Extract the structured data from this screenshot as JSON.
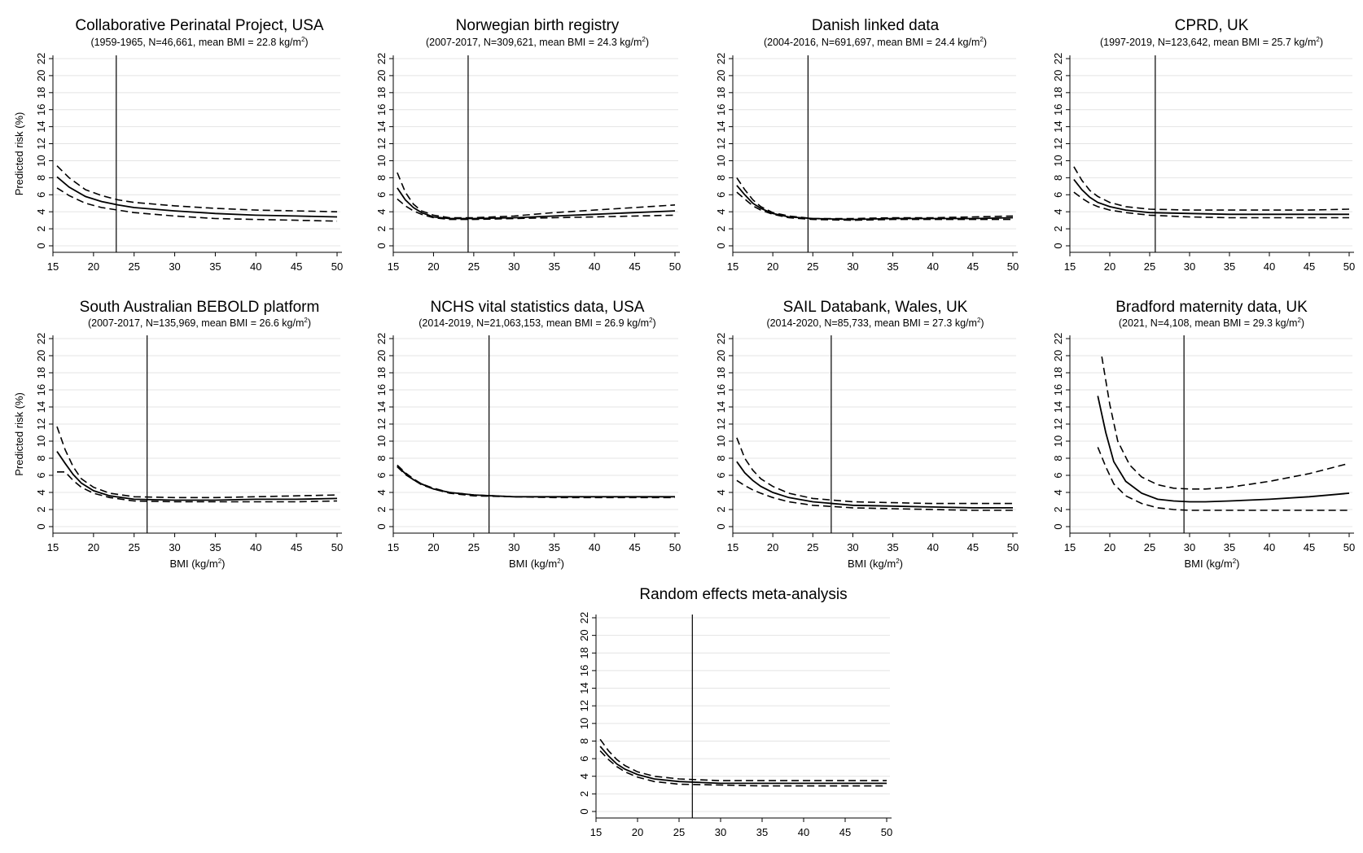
{
  "figure": {
    "axis_unit_sup": "2"
  },
  "chart_data": [
    {
      "type": "line",
      "title": "Collaborative Perinatal Project, USA",
      "subtitle": "(1959-1965, N=46,661, mean BMI = 22.8 kg/m",
      "ylabel": "Predicted risk (%)",
      "xlabel": "",
      "xlim": [
        15,
        50
      ],
      "ylim": [
        0,
        22
      ],
      "xticks": [
        15,
        20,
        25,
        30,
        35,
        40,
        45,
        50
      ],
      "yticks": [
        0,
        2,
        4,
        6,
        8,
        10,
        12,
        14,
        16,
        18,
        20,
        22
      ],
      "grid": true,
      "reference_x": 22.8,
      "series": [
        {
          "style": "solid",
          "x": [
            15.5,
            17,
            19,
            21,
            23,
            25,
            30,
            35,
            40,
            45,
            50
          ],
          "y": [
            8.1,
            6.9,
            5.8,
            5.2,
            4.8,
            4.5,
            4.1,
            3.8,
            3.6,
            3.5,
            3.4
          ]
        },
        {
          "style": "dashed",
          "x": [
            15.5,
            17,
            19,
            21,
            23,
            25,
            30,
            35,
            40,
            45,
            50
          ],
          "y": [
            9.4,
            8.0,
            6.6,
            5.9,
            5.4,
            5.1,
            4.7,
            4.4,
            4.2,
            4.1,
            4.0
          ]
        },
        {
          "style": "dashed",
          "x": [
            15.5,
            17,
            19,
            21,
            23,
            25,
            30,
            35,
            40,
            45,
            50
          ],
          "y": [
            6.8,
            5.9,
            5.0,
            4.5,
            4.2,
            3.9,
            3.5,
            3.2,
            3.1,
            3.0,
            2.9
          ]
        }
      ]
    },
    {
      "type": "line",
      "title": "Norwegian birth registry",
      "subtitle": "(2007-2017, N=309,621, mean BMI = 24.3 kg/m",
      "ylabel": "",
      "xlabel": "",
      "xlim": [
        15,
        50
      ],
      "ylim": [
        0,
        22
      ],
      "xticks": [
        15,
        20,
        25,
        30,
        35,
        40,
        45,
        50
      ],
      "yticks": [
        0,
        2,
        4,
        6,
        8,
        10,
        12,
        14,
        16,
        18,
        20,
        22
      ],
      "grid": true,
      "reference_x": 24.3,
      "series": [
        {
          "style": "solid",
          "x": [
            15.5,
            16.5,
            17.5,
            18.5,
            20,
            22,
            25,
            30,
            35,
            40,
            45,
            50
          ],
          "y": [
            6.8,
            5.4,
            4.5,
            3.9,
            3.4,
            3.2,
            3.2,
            3.3,
            3.5,
            3.7,
            3.9,
            4.1
          ]
        },
        {
          "style": "dashed",
          "x": [
            15.5,
            16.5,
            17.5,
            18.5,
            20,
            22,
            25,
            30,
            35,
            40,
            45,
            50
          ],
          "y": [
            8.6,
            6.3,
            4.9,
            4.1,
            3.6,
            3.3,
            3.3,
            3.5,
            3.9,
            4.2,
            4.5,
            4.8
          ]
        },
        {
          "style": "dashed",
          "x": [
            15.5,
            16.5,
            17.5,
            18.5,
            20,
            22,
            25,
            30,
            35,
            40,
            45,
            50
          ],
          "y": [
            5.5,
            4.7,
            4.1,
            3.7,
            3.3,
            3.1,
            3.1,
            3.2,
            3.3,
            3.4,
            3.5,
            3.6
          ]
        }
      ]
    },
    {
      "type": "line",
      "title": "Danish linked data",
      "subtitle": "(2004-2016, N=691,697, mean BMI = 24.4 kg/m",
      "ylabel": "",
      "xlabel": "",
      "xlim": [
        15,
        50
      ],
      "ylim": [
        0,
        22
      ],
      "xticks": [
        15,
        20,
        25,
        30,
        35,
        40,
        45,
        50
      ],
      "yticks": [
        0,
        2,
        4,
        6,
        8,
        10,
        12,
        14,
        16,
        18,
        20,
        22
      ],
      "grid": true,
      "reference_x": 24.4,
      "series": [
        {
          "style": "solid",
          "x": [
            15.5,
            16.5,
            17.5,
            18.5,
            20,
            22,
            25,
            30,
            35,
            40,
            45,
            50
          ],
          "y": [
            7.1,
            6.0,
            5.0,
            4.4,
            3.8,
            3.4,
            3.2,
            3.1,
            3.2,
            3.2,
            3.2,
            3.3
          ]
        },
        {
          "style": "dashed",
          "x": [
            15.5,
            16.5,
            17.5,
            18.5,
            20,
            22,
            25,
            30,
            35,
            40,
            45,
            50
          ],
          "y": [
            8.0,
            6.6,
            5.4,
            4.6,
            3.9,
            3.5,
            3.2,
            3.2,
            3.3,
            3.3,
            3.4,
            3.5
          ]
        },
        {
          "style": "dashed",
          "x": [
            15.5,
            16.5,
            17.5,
            18.5,
            20,
            22,
            25,
            30,
            35,
            40,
            45,
            50
          ],
          "y": [
            6.3,
            5.5,
            4.7,
            4.2,
            3.7,
            3.3,
            3.1,
            3.0,
            3.1,
            3.1,
            3.1,
            3.1
          ]
        }
      ]
    },
    {
      "type": "line",
      "title": "CPRD, UK",
      "subtitle": "(1997-2019, N=123,642, mean BMI = 25.7 kg/m",
      "ylabel": "",
      "xlabel": "",
      "xlim": [
        15,
        50
      ],
      "ylim": [
        0,
        22
      ],
      "xticks": [
        15,
        20,
        25,
        30,
        35,
        40,
        45,
        50
      ],
      "yticks": [
        0,
        2,
        4,
        6,
        8,
        10,
        12,
        14,
        16,
        18,
        20,
        22
      ],
      "grid": true,
      "reference_x": 25.7,
      "series": [
        {
          "style": "solid",
          "x": [
            15.5,
            16.5,
            17.5,
            18.5,
            20,
            22,
            25,
            30,
            35,
            40,
            45,
            50
          ],
          "y": [
            7.8,
            6.6,
            5.7,
            5.1,
            4.6,
            4.2,
            3.9,
            3.8,
            3.7,
            3.7,
            3.7,
            3.7
          ]
        },
        {
          "style": "dashed",
          "x": [
            15.5,
            16.5,
            17.5,
            18.5,
            20,
            22,
            25,
            30,
            35,
            40,
            45,
            50
          ],
          "y": [
            9.3,
            7.7,
            6.5,
            5.8,
            5.1,
            4.6,
            4.3,
            4.2,
            4.2,
            4.2,
            4.2,
            4.3
          ]
        },
        {
          "style": "dashed",
          "x": [
            15.5,
            16.5,
            17.5,
            18.5,
            20,
            22,
            25,
            30,
            35,
            40,
            45,
            50
          ],
          "y": [
            6.3,
            5.6,
            5.0,
            4.6,
            4.2,
            3.9,
            3.6,
            3.4,
            3.3,
            3.3,
            3.3,
            3.3
          ]
        }
      ]
    },
    {
      "type": "line",
      "title": "South Australian BEBOLD platform",
      "subtitle": "(2007-2017, N=135,969, mean BMI = 26.6 kg/m",
      "ylabel": "Predicted risk (%)",
      "xlabel": "BMI (kg/m",
      "xlim": [
        15,
        50
      ],
      "ylim": [
        0,
        22
      ],
      "xticks": [
        15,
        20,
        25,
        30,
        35,
        40,
        45,
        50
      ],
      "yticks": [
        0,
        2,
        4,
        6,
        8,
        10,
        12,
        14,
        16,
        18,
        20,
        22
      ],
      "grid": true,
      "reference_x": 26.6,
      "series": [
        {
          "style": "solid",
          "x": [
            15.5,
            16.5,
            17.5,
            18.5,
            20,
            22,
            25,
            30,
            35,
            40,
            45,
            50
          ],
          "y": [
            8.8,
            7.4,
            6.1,
            5.1,
            4.2,
            3.6,
            3.2,
            3.1,
            3.1,
            3.2,
            3.2,
            3.3
          ]
        },
        {
          "style": "dashed",
          "x": [
            15.5,
            16.5,
            17.5,
            18.5,
            20,
            22,
            25,
            30,
            35,
            40,
            45,
            50
          ],
          "y": [
            11.7,
            9.0,
            7.0,
            5.6,
            4.6,
            3.9,
            3.5,
            3.4,
            3.4,
            3.5,
            3.6,
            3.7
          ]
        },
        {
          "style": "dashed",
          "x": [
            15.5,
            16.5,
            17.5,
            18.5,
            20,
            22,
            25,
            30,
            35,
            40,
            45,
            50
          ],
          "y": [
            6.4,
            6.4,
            5.4,
            4.6,
            3.9,
            3.4,
            3.0,
            2.9,
            2.9,
            2.9,
            2.9,
            3.0
          ]
        }
      ]
    },
    {
      "type": "line",
      "title": "NCHS vital statistics data, USA",
      "subtitle": "(2014-2019, N=21,063,153, mean BMI = 26.9 kg/m",
      "ylabel": "",
      "xlabel": "BMI (kg/m",
      "xlim": [
        15,
        50
      ],
      "ylim": [
        0,
        22
      ],
      "xticks": [
        15,
        20,
        25,
        30,
        35,
        40,
        45,
        50
      ],
      "yticks": [
        0,
        2,
        4,
        6,
        8,
        10,
        12,
        14,
        16,
        18,
        20,
        22
      ],
      "grid": true,
      "reference_x": 26.9,
      "series": [
        {
          "style": "solid",
          "x": [
            15.5,
            16.5,
            17.5,
            18.5,
            20,
            22,
            25,
            30,
            35,
            40,
            45,
            50
          ],
          "y": [
            7.1,
            6.2,
            5.5,
            5.0,
            4.4,
            4.0,
            3.7,
            3.5,
            3.5,
            3.5,
            3.5,
            3.5
          ]
        },
        {
          "style": "dashed",
          "x": [
            15.5,
            16.5,
            17.5,
            18.5,
            20,
            22,
            25,
            30,
            35,
            40,
            45,
            50
          ],
          "y": [
            7.2,
            6.3,
            5.6,
            5.0,
            4.5,
            4.0,
            3.7,
            3.5,
            3.5,
            3.5,
            3.5,
            3.5
          ]
        },
        {
          "style": "dashed",
          "x": [
            15.5,
            16.5,
            17.5,
            18.5,
            20,
            22,
            25,
            30,
            35,
            40,
            45,
            50
          ],
          "y": [
            7.0,
            6.1,
            5.5,
            4.9,
            4.4,
            3.9,
            3.6,
            3.5,
            3.4,
            3.4,
            3.4,
            3.4
          ]
        }
      ]
    },
    {
      "type": "line",
      "title": "SAIL Databank, Wales, UK",
      "subtitle": "(2014-2020, N=85,733, mean BMI = 27.3 kg/m",
      "ylabel": "",
      "xlabel": "BMI (kg/m",
      "xlim": [
        15,
        50
      ],
      "ylim": [
        0,
        22
      ],
      "xticks": [
        15,
        20,
        25,
        30,
        35,
        40,
        45,
        50
      ],
      "yticks": [
        0,
        2,
        4,
        6,
        8,
        10,
        12,
        14,
        16,
        18,
        20,
        22
      ],
      "grid": true,
      "reference_x": 27.3,
      "series": [
        {
          "style": "solid",
          "x": [
            15.5,
            16.5,
            17.5,
            18.5,
            20,
            22,
            25,
            30,
            35,
            40,
            45,
            50
          ],
          "y": [
            7.6,
            6.3,
            5.4,
            4.7,
            4.0,
            3.4,
            2.9,
            2.5,
            2.4,
            2.3,
            2.2,
            2.2
          ]
        },
        {
          "style": "dashed",
          "x": [
            15.5,
            16.5,
            17.5,
            18.5,
            20,
            22,
            25,
            30,
            35,
            40,
            45,
            50
          ],
          "y": [
            10.4,
            8.0,
            6.6,
            5.6,
            4.7,
            3.9,
            3.3,
            2.9,
            2.8,
            2.7,
            2.7,
            2.7
          ]
        },
        {
          "style": "dashed",
          "x": [
            15.5,
            16.5,
            17.5,
            18.5,
            20,
            22,
            25,
            30,
            35,
            40,
            45,
            50
          ],
          "y": [
            5.4,
            4.8,
            4.3,
            3.9,
            3.4,
            2.9,
            2.5,
            2.2,
            2.1,
            2.0,
            1.9,
            1.9
          ]
        }
      ]
    },
    {
      "type": "line",
      "title": "Bradford maternity data, UK",
      "subtitle": "(2021, N=4,108, mean BMI = 29.3 kg/m",
      "ylabel": "",
      "xlabel": "BMI (kg/m",
      "xlim": [
        15,
        50
      ],
      "ylim": [
        0,
        22
      ],
      "xticks": [
        15,
        20,
        25,
        30,
        35,
        40,
        45,
        50
      ],
      "yticks": [
        0,
        2,
        4,
        6,
        8,
        10,
        12,
        14,
        16,
        18,
        20,
        22
      ],
      "grid": true,
      "reference_x": 29.3,
      "series": [
        {
          "style": "solid",
          "x": [
            18.5,
            19.5,
            20.5,
            22,
            24,
            26,
            28,
            30,
            32,
            35,
            40,
            45,
            50
          ],
          "y": [
            15.3,
            11.0,
            7.6,
            5.3,
            3.9,
            3.2,
            3.0,
            2.9,
            2.9,
            3.0,
            3.2,
            3.5,
            3.9
          ]
        },
        {
          "style": "dashed",
          "x": [
            19,
            20,
            21,
            22.5,
            24,
            26,
            28,
            30,
            32,
            35,
            40,
            45,
            50
          ],
          "y": [
            19.9,
            14.3,
            10.0,
            7.2,
            5.8,
            4.9,
            4.5,
            4.4,
            4.4,
            4.6,
            5.3,
            6.2,
            7.4
          ]
        },
        {
          "style": "dashed",
          "x": [
            18.5,
            19.5,
            20.5,
            22,
            24,
            26,
            28,
            30,
            32,
            35,
            40,
            45,
            50
          ],
          "y": [
            9.3,
            7.0,
            5.0,
            3.6,
            2.7,
            2.2,
            2.0,
            1.9,
            1.9,
            1.9,
            1.9,
            1.9,
            1.9
          ]
        }
      ]
    },
    {
      "type": "line",
      "title": "Random effects meta-analysis",
      "subtitle": "",
      "ylabel": "",
      "xlabel": "",
      "xlim": [
        15,
        50
      ],
      "ylim": [
        0,
        22
      ],
      "xticks": [
        15,
        20,
        25,
        30,
        35,
        40,
        45,
        50
      ],
      "yticks": [
        0,
        2,
        4,
        6,
        8,
        10,
        12,
        14,
        16,
        18,
        20,
        22
      ],
      "grid": true,
      "reference_x": 26.6,
      "series": [
        {
          "style": "solid",
          "x": [
            15.5,
            16.5,
            17.5,
            18.5,
            20,
            22,
            25,
            30,
            35,
            40,
            45,
            50
          ],
          "y": [
            7.4,
            6.3,
            5.4,
            4.8,
            4.2,
            3.7,
            3.4,
            3.2,
            3.2,
            3.2,
            3.2,
            3.2
          ]
        },
        {
          "style": "dashed",
          "x": [
            15.5,
            16.5,
            17.5,
            18.5,
            20,
            22,
            25,
            30,
            35,
            40,
            45,
            50
          ],
          "y": [
            8.2,
            6.9,
            5.9,
            5.2,
            4.5,
            4.0,
            3.7,
            3.5,
            3.5,
            3.5,
            3.5,
            3.5
          ]
        },
        {
          "style": "dashed",
          "x": [
            15.5,
            16.5,
            17.5,
            18.5,
            20,
            22,
            25,
            30,
            35,
            40,
            45,
            50
          ],
          "y": [
            6.9,
            5.9,
            5.1,
            4.5,
            3.9,
            3.4,
            3.1,
            3.0,
            2.9,
            2.9,
            2.9,
            2.9
          ]
        }
      ]
    }
  ]
}
